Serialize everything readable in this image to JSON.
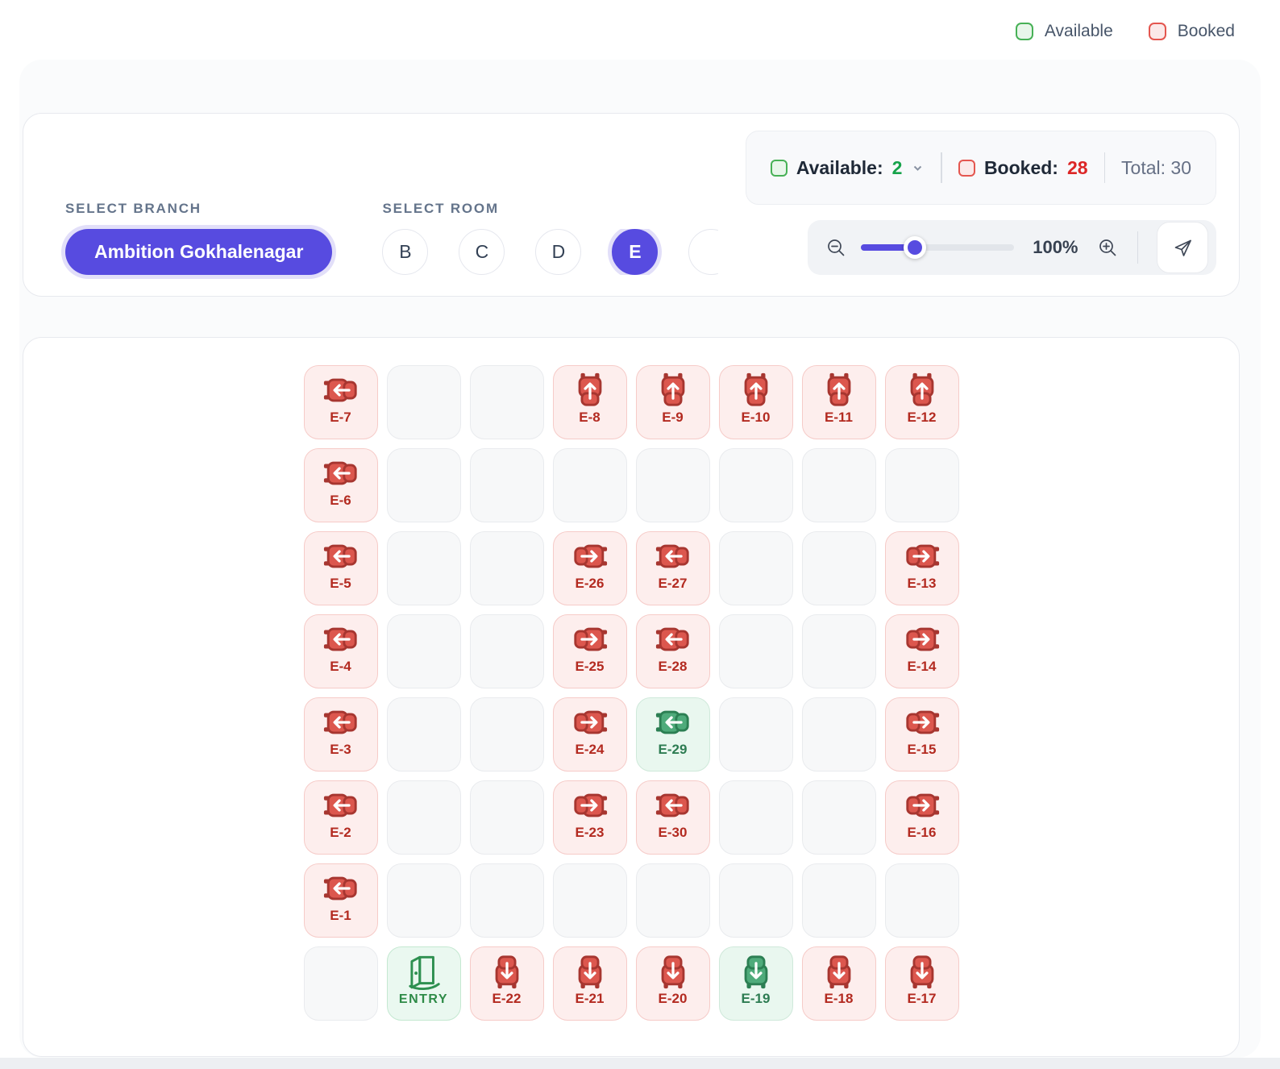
{
  "legend": {
    "available_label": "Available",
    "booked_label": "Booked"
  },
  "controls": {
    "branch_label": "SELECT BRANCH",
    "branch_value": "Ambition Gokhalenagar",
    "room_label": "SELECT ROOM",
    "rooms": [
      {
        "label": "B",
        "selected": false
      },
      {
        "label": "C",
        "selected": false
      },
      {
        "label": "D",
        "selected": false
      },
      {
        "label": "E",
        "selected": true
      },
      {
        "label": "",
        "selected": false
      }
    ],
    "stats": {
      "available_label": "Available:",
      "available_count": "2",
      "booked_label": "Booked:",
      "booked_count": "28",
      "total_label": "Total:",
      "total_count": "30"
    },
    "zoom": {
      "level": "100%"
    }
  },
  "colors": {
    "accent": "#574be0",
    "available_green": "#16a34a",
    "booked_red": "#dc2626",
    "seat_red_fill": "#dc574e",
    "seat_green_fill": "#4fab7b"
  },
  "seatmap": {
    "entry_label": "ENTRY",
    "rows": [
      [
        {
          "type": "seat",
          "id": "E-7",
          "dir": "left",
          "status": "booked"
        },
        {
          "type": "empty"
        },
        {
          "type": "empty"
        },
        {
          "type": "seat",
          "id": "E-8",
          "dir": "up",
          "status": "booked"
        },
        {
          "type": "seat",
          "id": "E-9",
          "dir": "up",
          "status": "booked"
        },
        {
          "type": "seat",
          "id": "E-10",
          "dir": "up",
          "status": "booked"
        },
        {
          "type": "seat",
          "id": "E-11",
          "dir": "up",
          "status": "booked"
        },
        {
          "type": "seat",
          "id": "E-12",
          "dir": "up",
          "status": "booked"
        }
      ],
      [
        {
          "type": "seat",
          "id": "E-6",
          "dir": "left",
          "status": "booked"
        },
        {
          "type": "empty"
        },
        {
          "type": "empty"
        },
        {
          "type": "empty"
        },
        {
          "type": "empty"
        },
        {
          "type": "empty"
        },
        {
          "type": "empty"
        },
        {
          "type": "empty"
        }
      ],
      [
        {
          "type": "seat",
          "id": "E-5",
          "dir": "left",
          "status": "booked"
        },
        {
          "type": "empty"
        },
        {
          "type": "empty"
        },
        {
          "type": "seat",
          "id": "E-26",
          "dir": "right",
          "status": "booked"
        },
        {
          "type": "seat",
          "id": "E-27",
          "dir": "left",
          "status": "booked"
        },
        {
          "type": "empty"
        },
        {
          "type": "empty"
        },
        {
          "type": "seat",
          "id": "E-13",
          "dir": "right",
          "status": "booked"
        }
      ],
      [
        {
          "type": "seat",
          "id": "E-4",
          "dir": "left",
          "status": "booked"
        },
        {
          "type": "empty"
        },
        {
          "type": "empty"
        },
        {
          "type": "seat",
          "id": "E-25",
          "dir": "right",
          "status": "booked"
        },
        {
          "type": "seat",
          "id": "E-28",
          "dir": "left",
          "status": "booked"
        },
        {
          "type": "empty"
        },
        {
          "type": "empty"
        },
        {
          "type": "seat",
          "id": "E-14",
          "dir": "right",
          "status": "booked"
        }
      ],
      [
        {
          "type": "seat",
          "id": "E-3",
          "dir": "left",
          "status": "booked"
        },
        {
          "type": "empty"
        },
        {
          "type": "empty"
        },
        {
          "type": "seat",
          "id": "E-24",
          "dir": "right",
          "status": "booked"
        },
        {
          "type": "seat",
          "id": "E-29",
          "dir": "left",
          "status": "available"
        },
        {
          "type": "empty"
        },
        {
          "type": "empty"
        },
        {
          "type": "seat",
          "id": "E-15",
          "dir": "right",
          "status": "booked"
        }
      ],
      [
        {
          "type": "seat",
          "id": "E-2",
          "dir": "left",
          "status": "booked"
        },
        {
          "type": "empty"
        },
        {
          "type": "empty"
        },
        {
          "type": "seat",
          "id": "E-23",
          "dir": "right",
          "status": "booked"
        },
        {
          "type": "seat",
          "id": "E-30",
          "dir": "left",
          "status": "booked"
        },
        {
          "type": "empty"
        },
        {
          "type": "empty"
        },
        {
          "type": "seat",
          "id": "E-16",
          "dir": "right",
          "status": "booked"
        }
      ],
      [
        {
          "type": "seat",
          "id": "E-1",
          "dir": "left",
          "status": "booked"
        },
        {
          "type": "empty"
        },
        {
          "type": "empty"
        },
        {
          "type": "empty"
        },
        {
          "type": "empty"
        },
        {
          "type": "empty"
        },
        {
          "type": "empty"
        },
        {
          "type": "empty"
        }
      ],
      [
        {
          "type": "empty"
        },
        {
          "type": "entry"
        },
        {
          "type": "seat",
          "id": "E-22",
          "dir": "down",
          "status": "booked"
        },
        {
          "type": "seat",
          "id": "E-21",
          "dir": "down",
          "status": "booked"
        },
        {
          "type": "seat",
          "id": "E-20",
          "dir": "down",
          "status": "booked"
        },
        {
          "type": "seat",
          "id": "E-19",
          "dir": "down",
          "status": "available"
        },
        {
          "type": "seat",
          "id": "E-18",
          "dir": "down",
          "status": "booked"
        },
        {
          "type": "seat",
          "id": "E-17",
          "dir": "down",
          "status": "booked"
        }
      ]
    ]
  }
}
